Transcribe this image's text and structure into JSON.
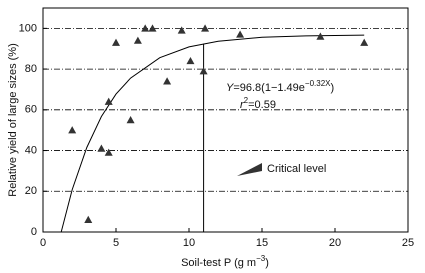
{
  "chart_data": {
    "type": "scatter",
    "xlabel": {
      "main": "Soil-test P (g m",
      "sup": "−3",
      "close": ")"
    },
    "ylabel": "Relative yield of large sizes (%)",
    "x": [
      2.0,
      3.1,
      4.0,
      4.5,
      4.5,
      5.0,
      6.0,
      6.5,
      7.0,
      7.5,
      8.5,
      9.5,
      10.1,
      11.1,
      11.0,
      13.5,
      19.0,
      22.0
    ],
    "values": [
      50,
      6,
      41,
      39,
      64,
      93,
      55,
      94,
      100,
      100,
      74,
      99,
      84,
      100,
      79,
      97,
      96,
      93
    ],
    "color": "#333333",
    "fit": {
      "x": [
        1.25,
        2,
        3,
        4,
        5,
        6,
        8,
        10,
        12,
        15,
        18,
        22
      ],
      "values": [
        0.2,
        20.8,
        41.5,
        56.7,
        67.7,
        75.6,
        85.6,
        90.9,
        93.7,
        95.6,
        96.3,
        96.7
      ],
      "color": "#000000"
    },
    "equation": {
      "lhs": "Y",
      "mid": "=96.8(1−1.49e",
      "exp": "−0.32X",
      "close": ")"
    },
    "r2": {
      "r": "r",
      "sup": "2",
      "rest": "=0.59"
    },
    "critical_line": {
      "x": 11,
      "ymax": 92.5
    },
    "annotation": "Critical level",
    "xlim": [
      0,
      25
    ],
    "xticks": [
      0,
      5,
      10,
      15,
      20,
      25
    ],
    "ylim": [
      0,
      110
    ],
    "yticks": [
      0,
      20,
      40,
      60,
      80,
      100
    ],
    "grid": true
  }
}
